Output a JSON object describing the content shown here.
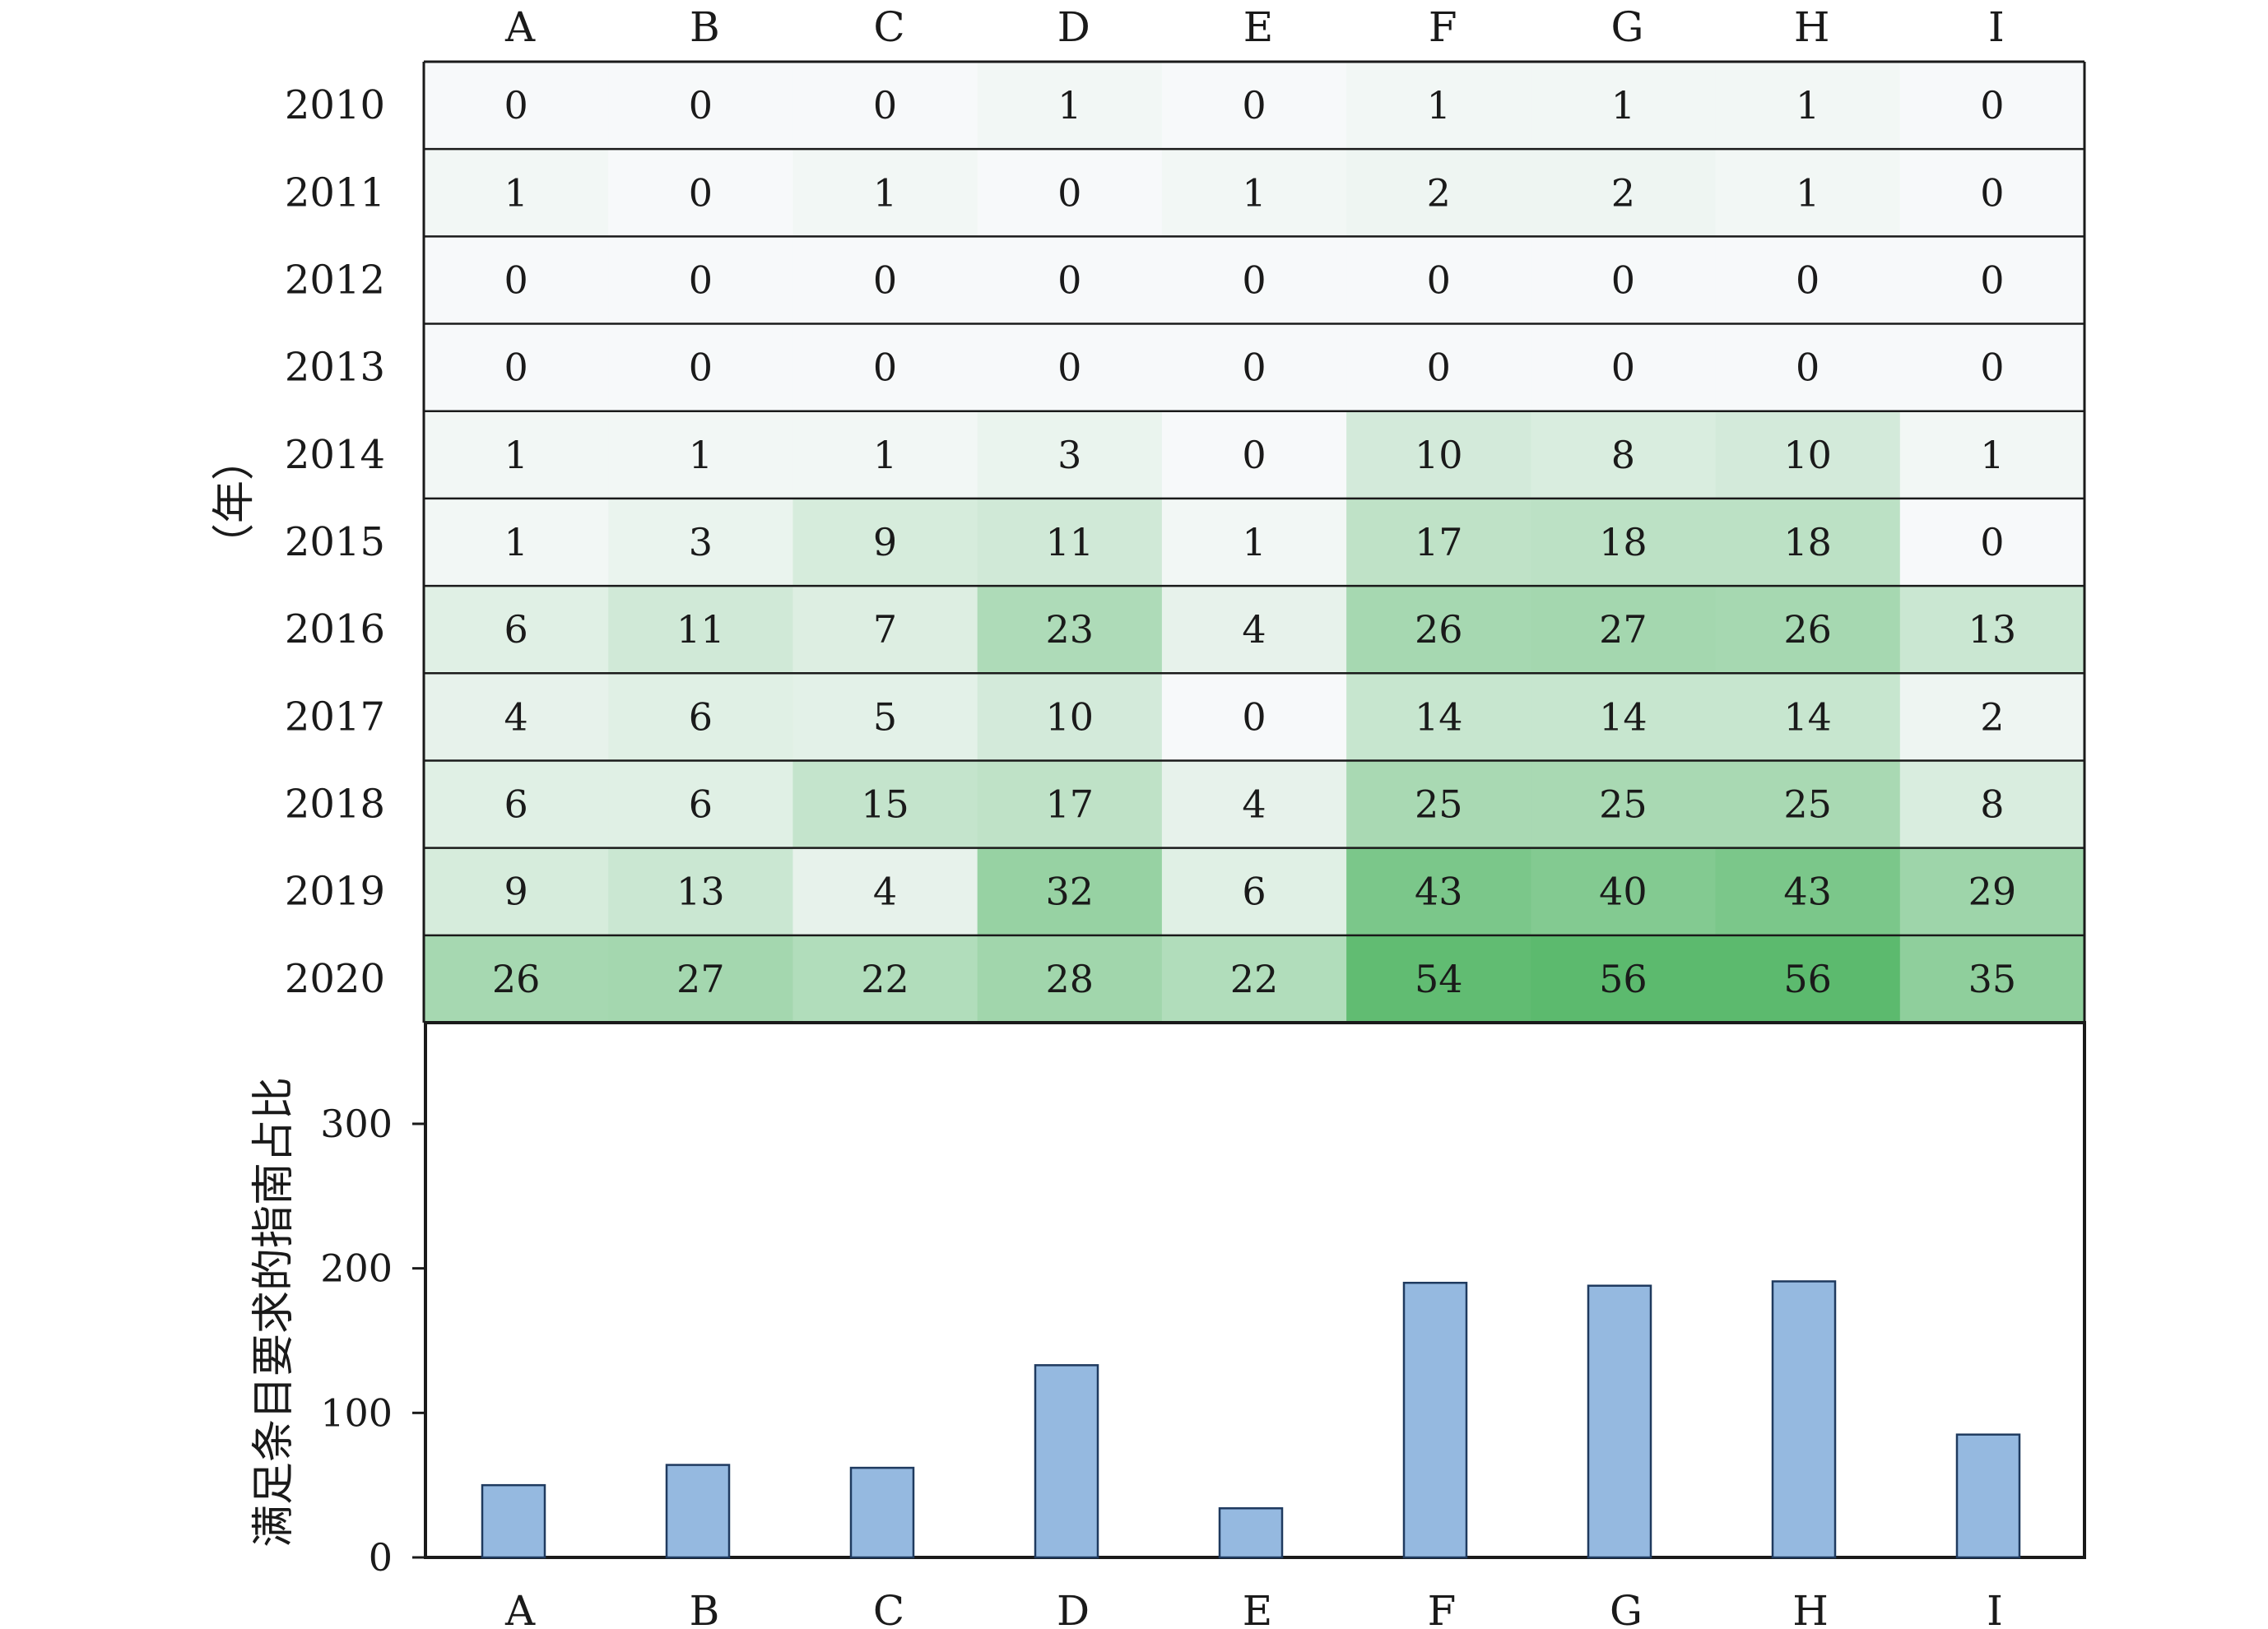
{
  "chart_data": [
    {
      "type": "heatmap",
      "columns": [
        "A",
        "B",
        "C",
        "D",
        "E",
        "F",
        "G",
        "H",
        "I"
      ],
      "rows": [
        "2010",
        "2011",
        "2012",
        "2013",
        "2014",
        "2015",
        "2016",
        "2017",
        "2018",
        "2019",
        "2020"
      ],
      "ylabel": "（年）",
      "values": [
        [
          0,
          0,
          0,
          1,
          0,
          1,
          1,
          1,
          0
        ],
        [
          1,
          0,
          1,
          0,
          1,
          2,
          2,
          1,
          0
        ],
        [
          0,
          0,
          0,
          0,
          0,
          0,
          0,
          0,
          0
        ],
        [
          0,
          0,
          0,
          0,
          0,
          0,
          0,
          0,
          0
        ],
        [
          1,
          1,
          1,
          3,
          0,
          10,
          8,
          10,
          1
        ],
        [
          1,
          3,
          9,
          11,
          1,
          17,
          18,
          18,
          0
        ],
        [
          6,
          11,
          7,
          23,
          4,
          26,
          27,
          26,
          13
        ],
        [
          4,
          6,
          5,
          10,
          0,
          14,
          14,
          14,
          2
        ],
        [
          6,
          6,
          15,
          17,
          4,
          25,
          25,
          25,
          8
        ],
        [
          9,
          13,
          4,
          32,
          6,
          43,
          40,
          43,
          29
        ],
        [
          26,
          27,
          22,
          28,
          22,
          54,
          56,
          56,
          35
        ]
      ],
      "color_scale": {
        "low": "#f7f9fa",
        "high": "#5cba6e"
      }
    },
    {
      "type": "bar",
      "categories": [
        "A",
        "B",
        "C",
        "D",
        "E",
        "F",
        "G",
        "H",
        "I"
      ],
      "values": [
        50,
        64,
        62,
        133,
        34,
        190,
        188,
        191,
        85
      ],
      "ylabel": "满足条目要求的指南占比",
      "ylim": [
        0,
        370
      ],
      "yticks": [
        0,
        100,
        200,
        300
      ],
      "bar_color": "#95b9e0",
      "bar_edge_color": "#1f3a5f"
    }
  ]
}
